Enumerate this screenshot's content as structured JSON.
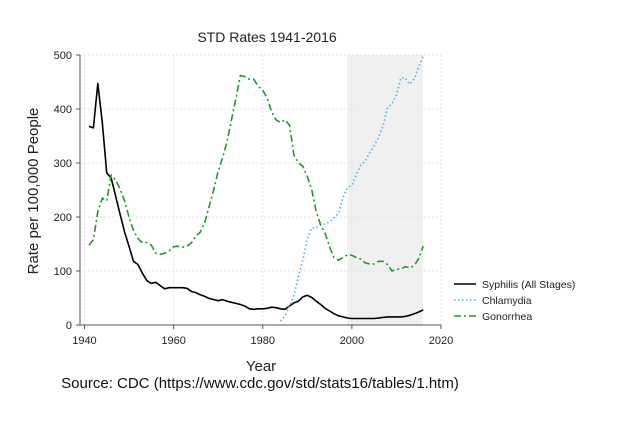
{
  "chart_data": {
    "type": "line",
    "title": "STD Rates 1941-2016",
    "xlabel": "Year",
    "ylabel": "Rate per 100,000 People",
    "xlim": [
      1939,
      2020
    ],
    "ylim": [
      0,
      500
    ],
    "xticks": [
      1940,
      1960,
      1980,
      2000,
      2020
    ],
    "yticks": [
      0,
      100,
      200,
      300,
      400,
      500
    ],
    "grid": true,
    "shaded_region": {
      "x_start": 1999,
      "x_end": 2016,
      "color": "#f0f0f0"
    },
    "legend_position": "right",
    "series": [
      {
        "name": "Syphilis (All Stages)",
        "color": "#000000",
        "style": "solid",
        "x": [
          1941,
          1942,
          1943,
          1944,
          1945,
          1946,
          1947,
          1948,
          1949,
          1950,
          1951,
          1952,
          1953,
          1954,
          1955,
          1956,
          1957,
          1958,
          1959,
          1960,
          1961,
          1962,
          1963,
          1964,
          1965,
          1966,
          1967,
          1968,
          1969,
          1970,
          1971,
          1972,
          1973,
          1974,
          1975,
          1976,
          1977,
          1978,
          1979,
          1980,
          1981,
          1982,
          1983,
          1984,
          1985,
          1986,
          1987,
          1988,
          1989,
          1990,
          1991,
          1992,
          1993,
          1994,
          1995,
          1996,
          1997,
          1998,
          1999,
          2000,
          2001,
          2002,
          2003,
          2004,
          2005,
          2006,
          2007,
          2008,
          2009,
          2010,
          2011,
          2012,
          2013,
          2014,
          2015,
          2016
        ],
        "values": [
          368,
          365,
          447,
          375,
          282,
          272,
          238,
          205,
          172,
          146,
          118,
          112,
          96,
          82,
          77,
          79,
          73,
          67,
          69,
          69,
          69,
          69,
          68,
          62,
          60,
          56,
          53,
          49,
          47,
          45,
          47,
          44,
          42,
          40,
          38,
          35,
          30,
          29,
          30,
          30,
          31,
          33,
          32,
          30,
          29,
          35,
          41,
          44,
          52,
          55,
          51,
          44,
          38,
          31,
          26,
          21,
          17,
          15,
          13,
          12,
          12,
          12,
          12,
          12,
          12,
          13,
          14,
          15,
          15,
          15,
          15,
          16,
          18,
          21,
          24,
          28
        ]
      },
      {
        "name": "Chlamydia",
        "color": "#4fb3e6",
        "style": "dotted",
        "x": [
          1984,
          1985,
          1986,
          1987,
          1988,
          1989,
          1990,
          1991,
          1992,
          1993,
          1994,
          1995,
          1996,
          1997,
          1998,
          1999,
          2000,
          2001,
          2002,
          2003,
          2004,
          2005,
          2006,
          2007,
          2008,
          2009,
          2010,
          2011,
          2012,
          2013,
          2014,
          2015,
          2016
        ],
        "values": [
          7,
          17,
          35,
          55,
          90,
          120,
          160,
          180,
          180,
          186,
          187,
          191,
          198,
          207,
          236,
          254,
          259,
          278,
          296,
          304,
          319,
          332,
          347,
          370,
          402,
          410,
          426,
          458,
          457,
          446,
          456,
          478,
          498
        ]
      },
      {
        "name": "Gonorrhea",
        "color": "#1f9a2a",
        "style": "dashdot",
        "x": [
          1941,
          1942,
          1943,
          1944,
          1945,
          1946,
          1947,
          1948,
          1949,
          1950,
          1951,
          1952,
          1953,
          1954,
          1955,
          1956,
          1957,
          1958,
          1959,
          1960,
          1961,
          1962,
          1963,
          1964,
          1965,
          1966,
          1967,
          1968,
          1969,
          1970,
          1971,
          1972,
          1973,
          1974,
          1975,
          1976,
          1977,
          1978,
          1979,
          1980,
          1981,
          1982,
          1983,
          1984,
          1985,
          1986,
          1987,
          1988,
          1989,
          1990,
          1991,
          1992,
          1993,
          1994,
          1995,
          1996,
          1997,
          1998,
          1999,
          2000,
          2001,
          2002,
          2003,
          2004,
          2005,
          2006,
          2007,
          2008,
          2009,
          2010,
          2011,
          2012,
          2013,
          2014,
          2015,
          2016
        ],
        "values": [
          148,
          158,
          210,
          235,
          230,
          278,
          268,
          252,
          230,
          200,
          175,
          160,
          152,
          153,
          148,
          133,
          131,
          133,
          137,
          145,
          146,
          144,
          146,
          152,
          165,
          172,
          190,
          220,
          250,
          285,
          310,
          340,
          380,
          420,
          462,
          460,
          455,
          455,
          442,
          435,
          420,
          395,
          380,
          375,
          380,
          370,
          315,
          300,
          294,
          275,
          250,
          210,
          185,
          170,
          145,
          125,
          120,
          125,
          130,
          129,
          125,
          122,
          115,
          113,
          113,
          118,
          118,
          112,
          100,
          103,
          104,
          108,
          106,
          110,
          123,
          146
        ]
      }
    ],
    "source": "Source: CDC (https://www.cdc.gov/std/stats16/tables/1.htm)"
  }
}
